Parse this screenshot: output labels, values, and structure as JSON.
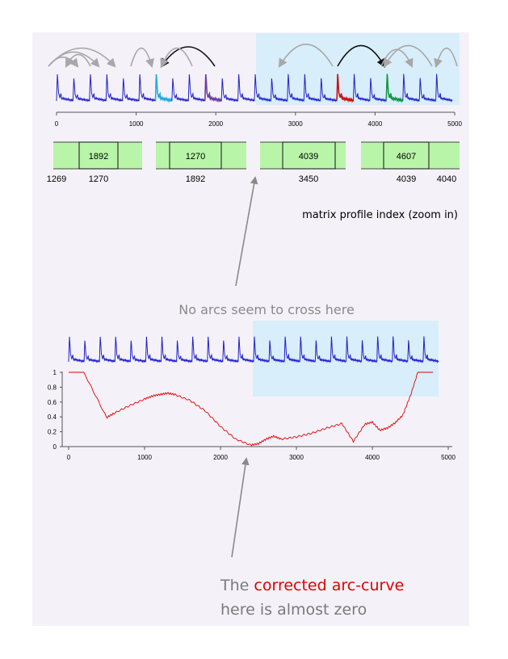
{
  "top_axis": {
    "ticks": [
      "0",
      "1000",
      "2000",
      "3000",
      "4000",
      "5000"
    ]
  },
  "index_strip": {
    "cells": [
      {
        "value": "1892",
        "color": "#6b4ea0"
      },
      {
        "value": "1270",
        "color": "#2aa7d6"
      },
      {
        "value": "4039",
        "color": "#1f9a46"
      },
      {
        "value": "4607",
        "color": "#999999"
      }
    ],
    "below_labels": [
      "1269",
      "1270",
      "1892",
      "3450",
      "4039",
      "4040"
    ],
    "caption": "matrix profile index (zoom in)"
  },
  "callout_top": "No arcs seem to cross here",
  "bottom_chart": {
    "y_ticks": [
      "1",
      "0.8",
      "0.6",
      "0.4",
      "0.2",
      "0"
    ],
    "x_ticks": [
      "0",
      "1000",
      "2000",
      "3000",
      "4000",
      "5000"
    ]
  },
  "callout_bottom": {
    "line1_prefix": "The ",
    "line1_highlight": "corrected arc-curve",
    "line2": "here is almost zero"
  },
  "chart_data": {
    "type": "line",
    "series": [
      {
        "x": [
          0,
          200,
          500,
          600,
          800,
          1000,
          1100,
          1200,
          1300,
          1400,
          1600,
          1800,
          2000,
          2200,
          2400,
          2500,
          2600,
          2700,
          2800,
          3000,
          3200,
          3400,
          3600,
          3750,
          3900,
          4000,
          4100,
          4200,
          4300,
          4400,
          4500,
          4600,
          4800
        ],
        "y": [
          1,
          1,
          0.39,
          0.45,
          0.55,
          0.64,
          0.68,
          0.7,
          0.72,
          0.7,
          0.62,
          0.48,
          0.27,
          0.1,
          0.02,
          0.04,
          0.1,
          0.14,
          0.1,
          0.13,
          0.18,
          0.25,
          0.31,
          0.07,
          0.3,
          0.33,
          0.22,
          0.25,
          0.32,
          0.42,
          0.68,
          1,
          1
        ]
      }
    ],
    "xlim": [
      0,
      5000
    ],
    "ylim": [
      0,
      1
    ],
    "grid": false
  },
  "colors": {
    "signal": "#2222cc",
    "curve": "#e00000",
    "arc_gray": "#a8a8a8",
    "arc_black": "#111111",
    "shade": "#d8eefa",
    "index_green": "#b9f5a8",
    "highlight_purple": "#6b3fa0",
    "highlight_cyan": "#22aadd",
    "highlight_red": "#cc1111",
    "highlight_green": "#119944"
  }
}
